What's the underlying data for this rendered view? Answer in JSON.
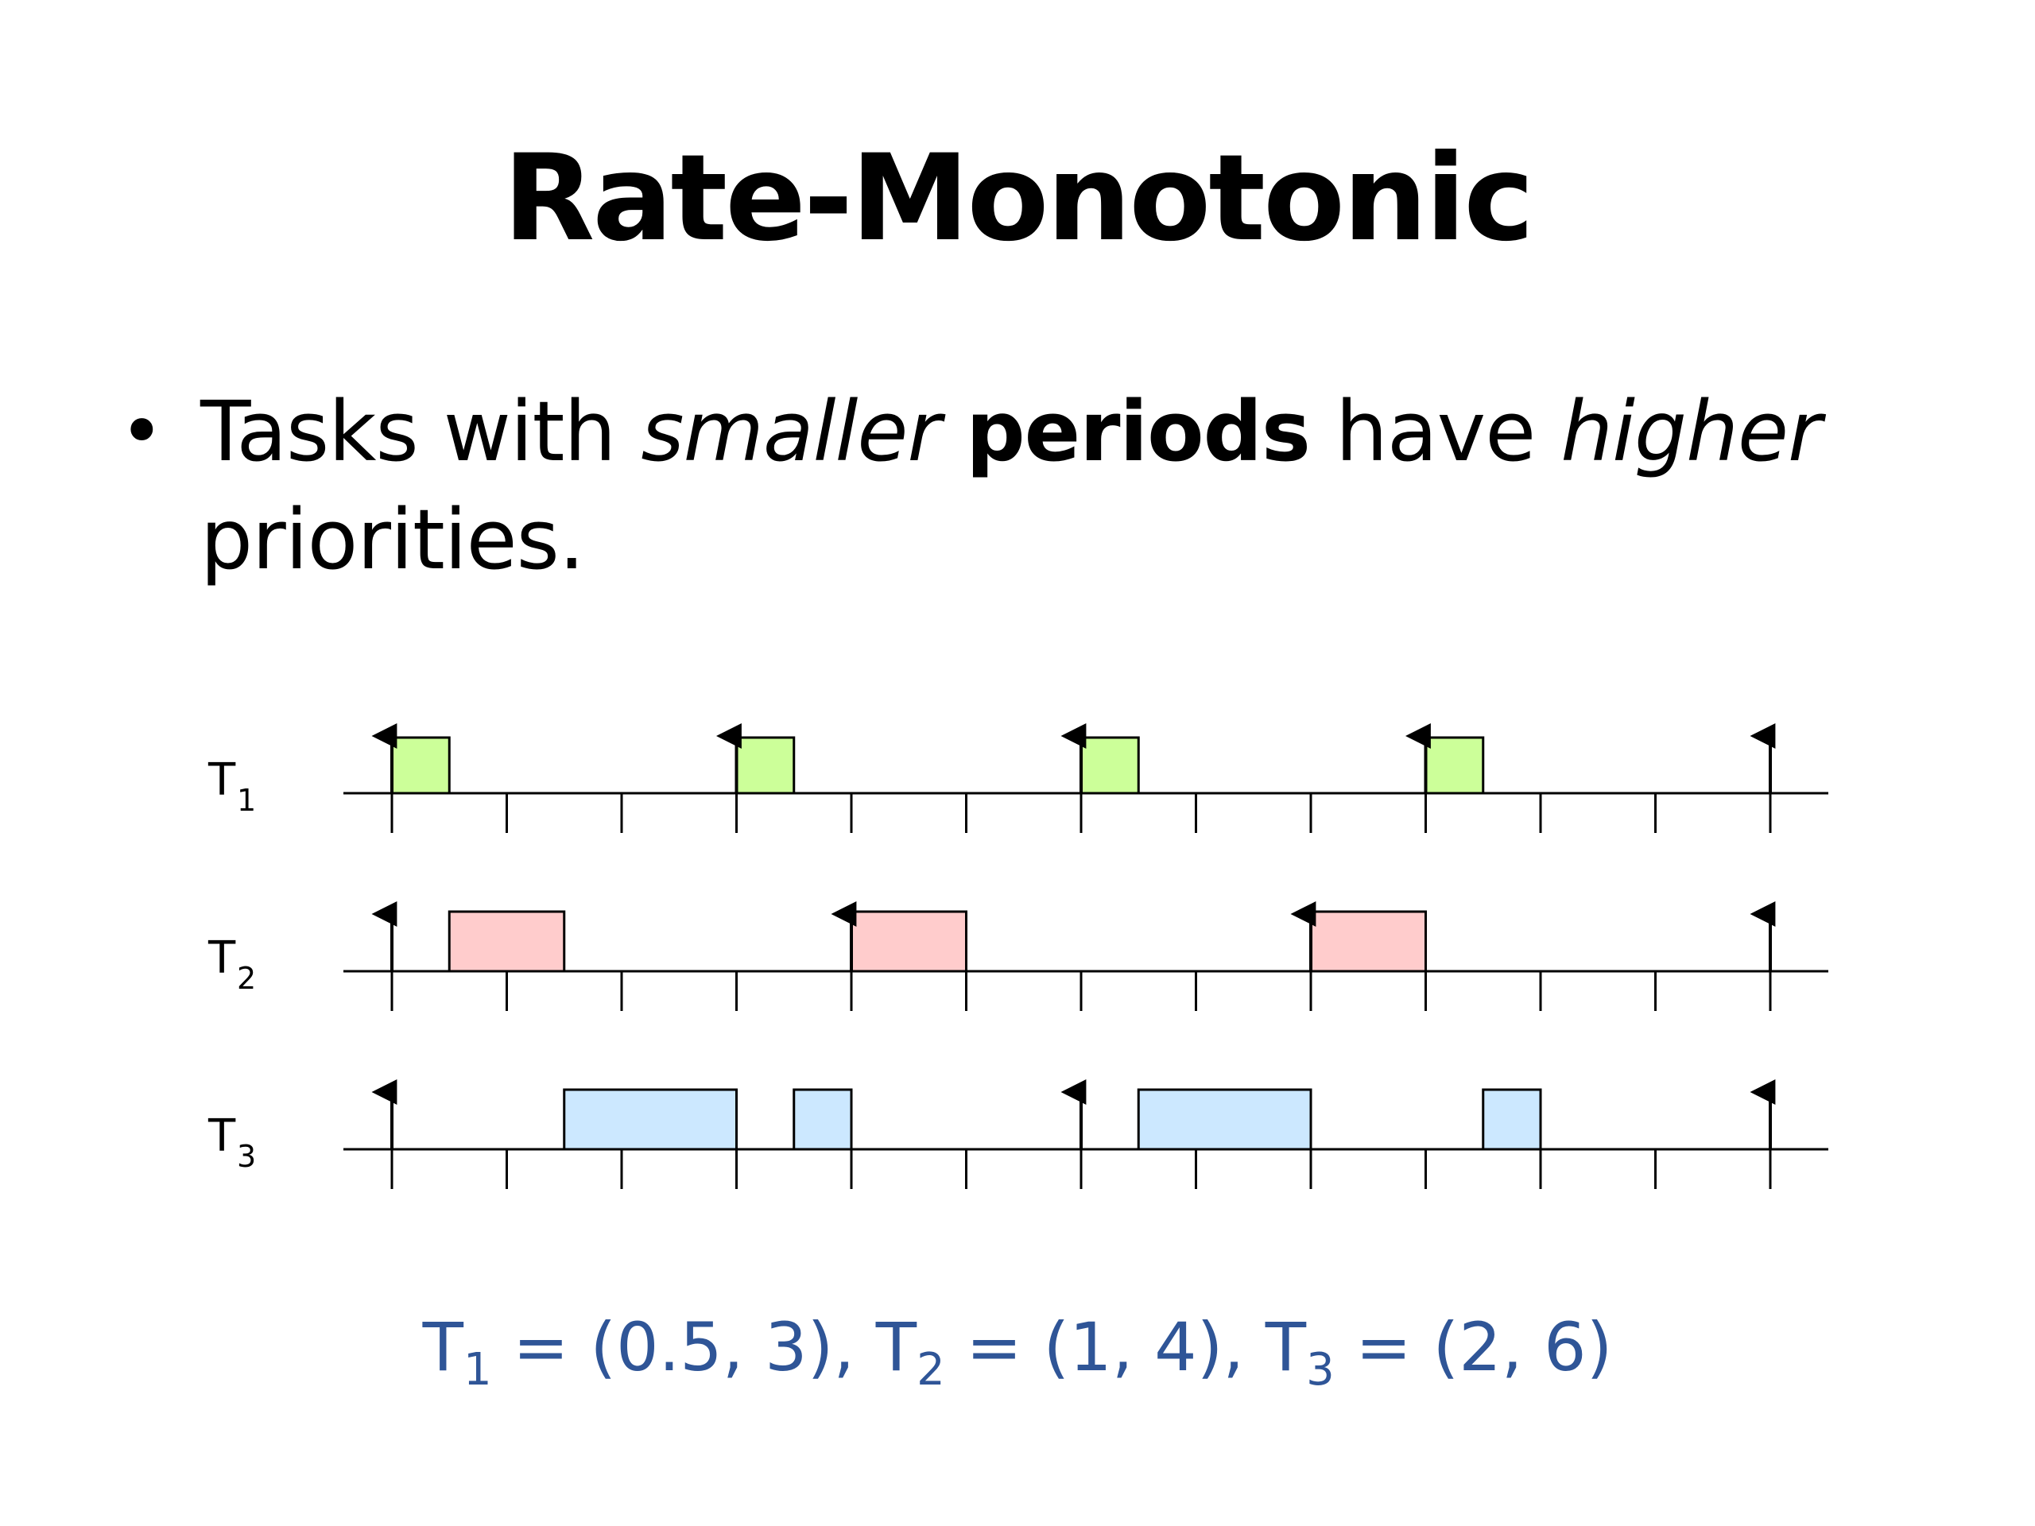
{
  "slide": {
    "title": "Rate-Monotonic",
    "bullet": {
      "part1": "Tasks with ",
      "part2_italic": "smaller",
      "part3": " ",
      "part4_bold": "periods",
      "part5": " have ",
      "part6_italic": "higher",
      "part7": " priorities."
    }
  },
  "chart_data": {
    "type": "gantt",
    "time_range": [
      0,
      12
    ],
    "tick_interval": 1,
    "tasks": [
      {
        "label": "T",
        "subscript": "1",
        "color": "#ccff99",
        "releases": [
          0,
          3,
          6,
          9,
          12
        ],
        "executions": [
          [
            0,
            0.5
          ],
          [
            3,
            3.5
          ],
          [
            6,
            6.5
          ],
          [
            9,
            9.5
          ]
        ]
      },
      {
        "label": "T",
        "subscript": "2",
        "color": "#ffcccc",
        "releases": [
          0,
          4,
          8,
          12
        ],
        "executions": [
          [
            0.5,
            1.5
          ],
          [
            4,
            5
          ],
          [
            8,
            9
          ]
        ]
      },
      {
        "label": "T",
        "subscript": "3",
        "color": "#cce8ff",
        "releases": [
          0,
          6,
          12
        ],
        "executions": [
          [
            1.5,
            3
          ],
          [
            3.5,
            4
          ],
          [
            6.5,
            8
          ],
          [
            9.5,
            10
          ]
        ]
      }
    ]
  },
  "formula": {
    "t1": "T",
    "t1_sub": "1",
    "t1_val": " = (0.5, 3), ",
    "t2": "T",
    "t2_sub": "2",
    "t2_val": " = (1, 4), ",
    "t3": "T",
    "t3_sub": "3",
    "t3_val": " = (2, 6)"
  }
}
